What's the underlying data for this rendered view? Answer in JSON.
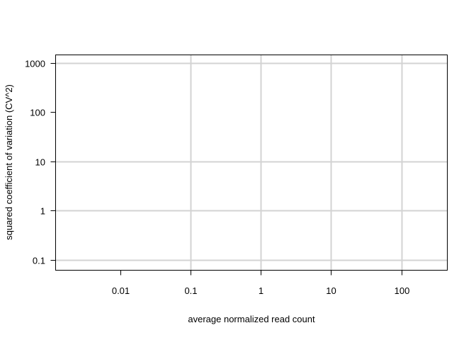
{
  "chart_data": {
    "type": "scatter",
    "title": "",
    "xlabel": "average normalized read count",
    "ylabel": "squared coefficient of variation (CV^2)",
    "xscale": "log",
    "yscale": "log",
    "xlim": [
      0.0012,
      450
    ],
    "ylim": [
      0.062,
      1450
    ],
    "xticks": [
      0.01,
      0.1,
      1,
      10,
      100
    ],
    "xtick_labels": [
      "0.01",
      "0.1",
      "1",
      "10",
      "100"
    ],
    "yticks": [
      0.1,
      1,
      10,
      100,
      1000
    ],
    "ytick_labels": [
      "0.1",
      "1",
      "10",
      "100",
      "1000"
    ],
    "grid": true,
    "gridline_x": [
      0.1,
      1,
      10,
      100
    ],
    "gridline_y": [
      0.1,
      1,
      10,
      1000
    ],
    "series": [],
    "colors": {
      "grid": "#d3d3d3",
      "axis": "#000000"
    }
  }
}
